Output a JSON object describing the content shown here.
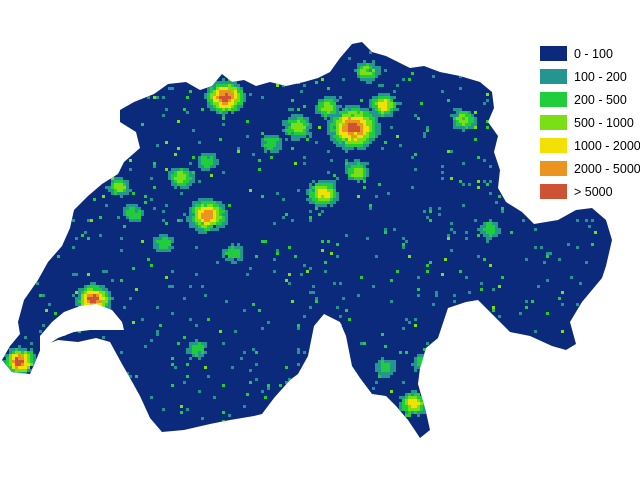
{
  "map": {
    "region": "Switzerland",
    "fill_color": "#0c2a7c",
    "lake_color": "#ffffff",
    "hotspots": [
      {
        "id": "zurich",
        "level": 6
      },
      {
        "id": "basel",
        "level": 6
      },
      {
        "id": "geneva",
        "level": 6
      },
      {
        "id": "lausanne",
        "level": 6
      },
      {
        "id": "bern",
        "level": 5
      },
      {
        "id": "lucerne",
        "level": 4
      },
      {
        "id": "winterthur",
        "level": 4
      },
      {
        "id": "st-gallen",
        "level": 3
      },
      {
        "id": "lugano",
        "level": 4
      },
      {
        "id": "biel",
        "level": 3
      },
      {
        "id": "thun",
        "level": 2
      },
      {
        "id": "fribourg",
        "level": 2
      },
      {
        "id": "schaffhausen",
        "level": 3
      },
      {
        "id": "sion",
        "level": 2
      },
      {
        "id": "chur",
        "level": 2
      },
      {
        "id": "aarau",
        "level": 3
      },
      {
        "id": "baden",
        "level": 3
      },
      {
        "id": "la-chaux-de-fonds",
        "level": 2
      },
      {
        "id": "solothurn",
        "level": 2
      },
      {
        "id": "zug",
        "level": 3
      },
      {
        "id": "neuchatel",
        "level": 3
      },
      {
        "id": "olten",
        "level": 2
      },
      {
        "id": "bellinzona",
        "level": 2
      },
      {
        "id": "locarno",
        "level": 2
      }
    ]
  },
  "legend": {
    "items": [
      {
        "label": "0 - 100",
        "color": "#0c2a7c"
      },
      {
        "label": "100 - 200",
        "color": "#25958f"
      },
      {
        "label": "200 - 500",
        "color": "#1fce3a"
      },
      {
        "label": "500 - 1000",
        "color": "#7ae015"
      },
      {
        "label": "1000 - 2000",
        "color": "#f2e006"
      },
      {
        "label": "2000 - 5000",
        "color": "#eb941f"
      },
      {
        "label": "> 5000",
        "color": "#cc5435"
      }
    ]
  }
}
